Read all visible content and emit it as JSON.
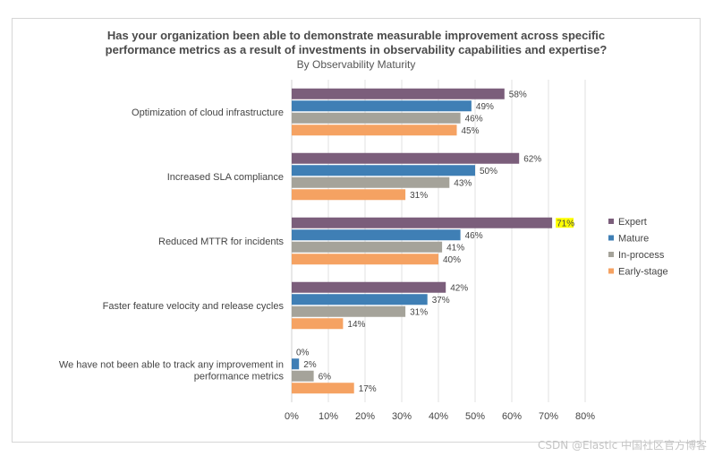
{
  "chart_data": {
    "type": "bar",
    "orientation": "horizontal",
    "title_lines": [
      "Has your organization been able to demonstrate measurable improvement across specific",
      "performance metrics as a result of investments in observability capabilities and expertise?"
    ],
    "subtitle": "By Observability Maturity",
    "categories": [
      [
        "Optimization of cloud infrastructure"
      ],
      [
        "Increased SLA compliance"
      ],
      [
        "Reduced MTTR for incidents"
      ],
      [
        "Faster feature velocity and release cycles"
      ],
      [
        "We have not been able to track any improvement in",
        "performance metrics"
      ]
    ],
    "series": [
      {
        "name": "Expert",
        "color": "#7b5e7b",
        "values": [
          58,
          62,
          71,
          42,
          0
        ]
      },
      {
        "name": "Mature",
        "color": "#3f7fb5",
        "values": [
          49,
          50,
          46,
          37,
          2
        ]
      },
      {
        "name": "In-process",
        "color": "#a5a39a",
        "values": [
          46,
          43,
          41,
          31,
          6
        ]
      },
      {
        "name": "Early-stage",
        "color": "#f5a262",
        "values": [
          45,
          31,
          40,
          14,
          17
        ]
      }
    ],
    "highlight": {
      "series": 0,
      "category": 2,
      "color": "#ffff00"
    },
    "xlim": [
      0,
      80
    ],
    "xticks": [
      0,
      10,
      20,
      30,
      40,
      50,
      60,
      70,
      80
    ],
    "tick_suffix": "%",
    "value_suffix": "%",
    "grid": true,
    "legend_position": "right"
  },
  "watermark": "CSDN @Elastic 中国社区官方博客"
}
